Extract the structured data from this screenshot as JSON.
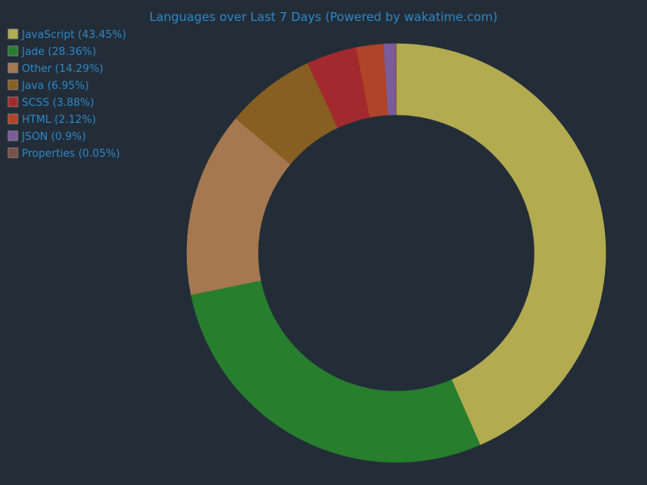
{
  "colors": {
    "background": "#232d38",
    "text": "#2c87c7",
    "swatch_border": "#8a8a8a"
  },
  "chart_data": {
    "type": "pie",
    "variant": "donut",
    "title": "Languages over Last 7 Days (Powered by wakatime.com)",
    "legend_position": "top-left",
    "start_angle": "12 o'clock, clockwise",
    "slices": [
      {
        "label": "JavaScript (43.45%)",
        "name": "JavaScript",
        "value": 43.45,
        "color": "#b3ab50"
      },
      {
        "label": "Jade (28.36%)",
        "name": "Jade",
        "value": 28.36,
        "color": "#277e2d"
      },
      {
        "label": "Other (14.29%)",
        "name": "Other",
        "value": 14.29,
        "color": "#a5784f"
      },
      {
        "label": "Java (6.95%)",
        "name": "Java",
        "value": 6.95,
        "color": "#875f22"
      },
      {
        "label": "SCSS (3.88%)",
        "name": "SCSS",
        "value": 3.88,
        "color": "#a2292e"
      },
      {
        "label": "HTML (2.12%)",
        "name": "HTML",
        "value": 2.12,
        "color": "#af4428"
      },
      {
        "label": "JSON (0.9%)",
        "name": "JSON",
        "value": 0.9,
        "color": "#7b5c9b"
      },
      {
        "label": "Properties (0.05%)",
        "name": "Properties",
        "value": 0.05,
        "color": "#7a4f4a"
      }
    ]
  }
}
